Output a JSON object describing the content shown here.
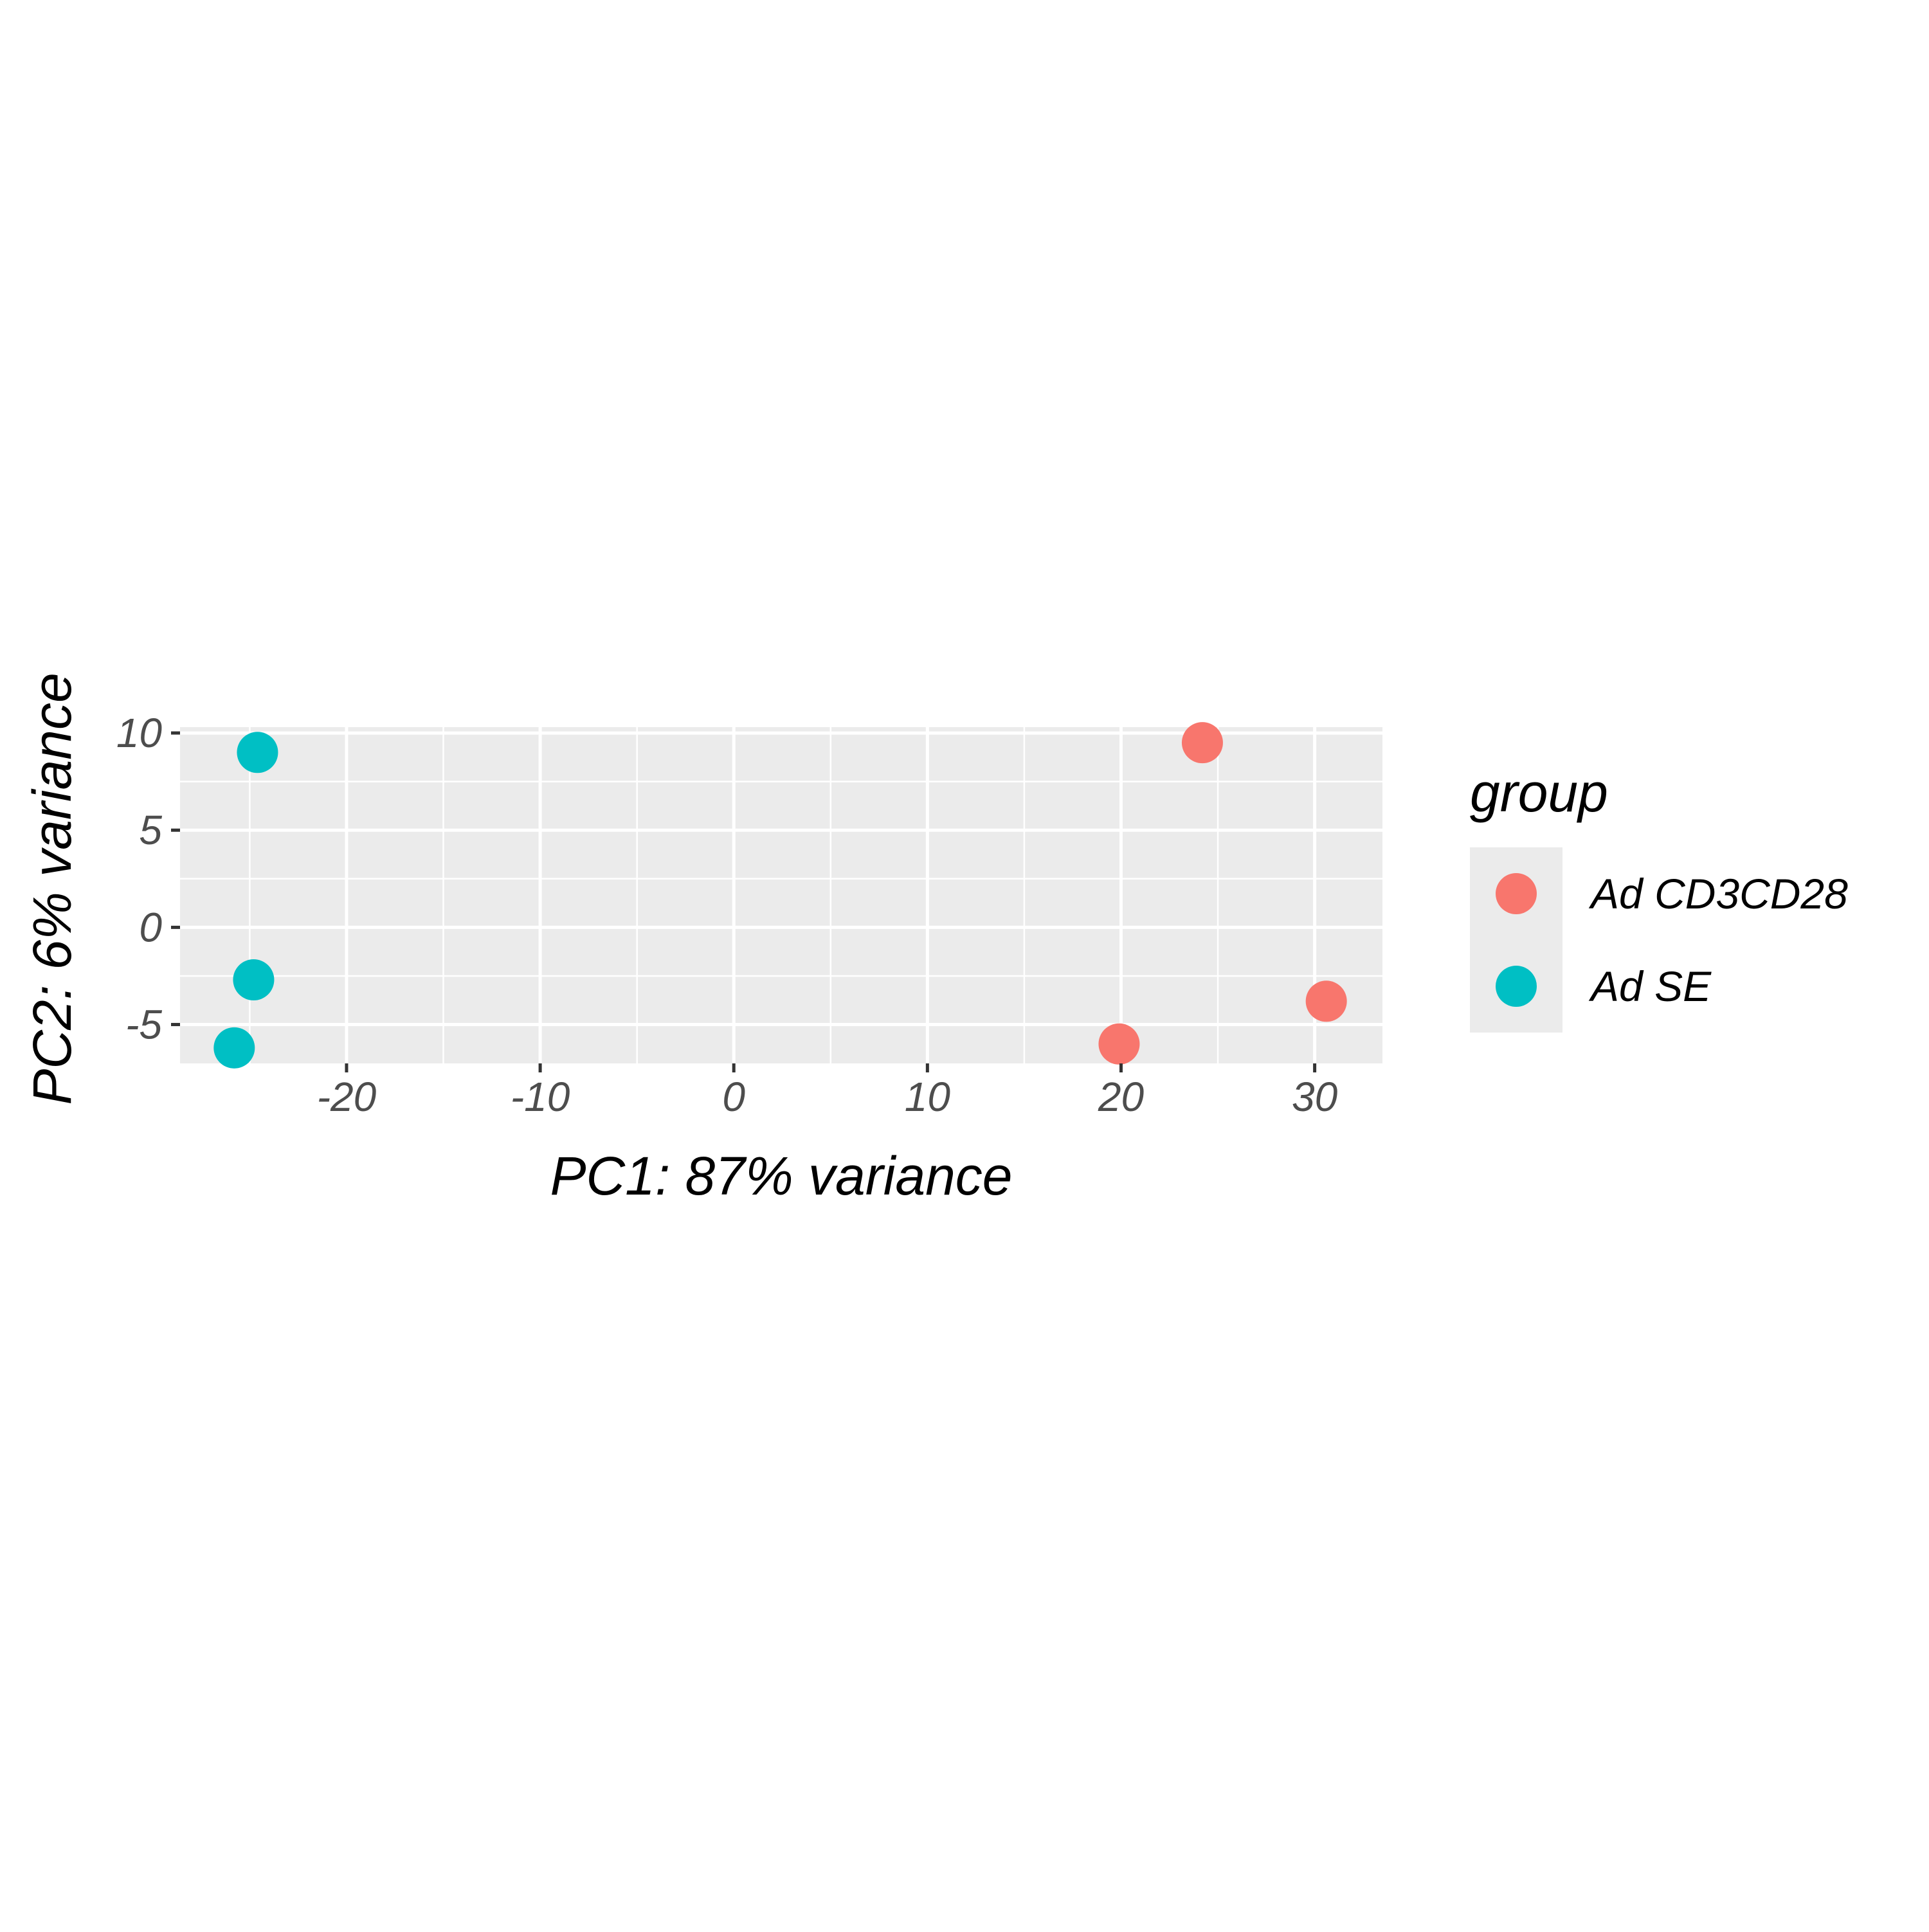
{
  "chart_data": {
    "type": "scatter",
    "xlabel": "PC1: 87% variance",
    "ylabel": "PC2: 6% variance",
    "xlim": [
      -28.6,
      33.5
    ],
    "ylim": [
      -7.0,
      10.3
    ],
    "x_ticks": [
      -20,
      -10,
      0,
      10,
      20,
      30
    ],
    "x_tick_labels": [
      "-20",
      "-10",
      "0",
      "10",
      "20",
      "30"
    ],
    "y_ticks": [
      -5,
      0,
      5,
      10
    ],
    "y_tick_labels": [
      "-5",
      "0",
      "5",
      "10"
    ],
    "x_minor_ticks": [
      -25,
      -15,
      -5,
      5,
      15,
      25
    ],
    "y_minor_ticks": [
      -2.5,
      2.5,
      7.5
    ],
    "grid": true,
    "legend": {
      "title": "group",
      "placement": "right"
    },
    "series": [
      {
        "name": "Ad CD3CD28",
        "color": "#F8766D",
        "points": [
          {
            "x": 24.2,
            "y": 9.5
          },
          {
            "x": 30.6,
            "y": -3.8
          },
          {
            "x": 19.9,
            "y": -6.0
          }
        ]
      },
      {
        "name": "Ad SE",
        "color": "#00BFC4",
        "points": [
          {
            "x": -24.6,
            "y": 9.0
          },
          {
            "x": -24.8,
            "y": -2.7
          },
          {
            "x": -25.8,
            "y": -6.2
          }
        ]
      }
    ]
  },
  "colors": {
    "panel_background": "#EBEBEB",
    "grid_line": "#FFFFFF",
    "tick_label": "#4D4D4D",
    "axis_title": "#000000"
  }
}
